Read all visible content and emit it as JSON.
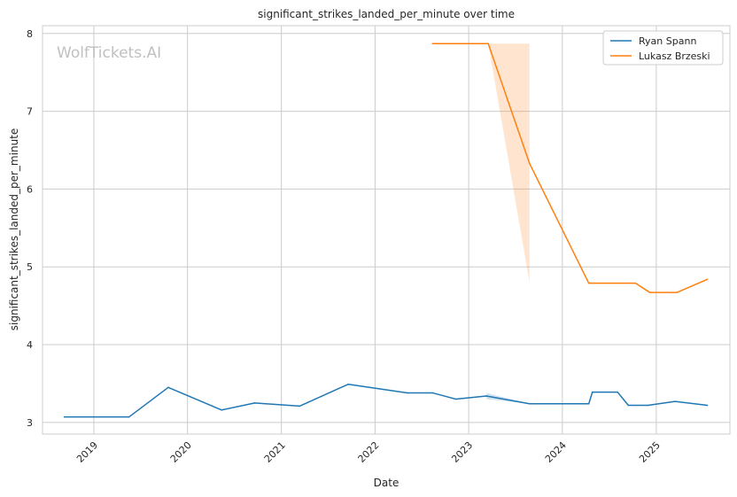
{
  "chart_data": {
    "type": "line",
    "title": "significant_strikes_landed_per_minute over time",
    "xlabel": "Date",
    "ylabel": "significant_strikes_landed_per_minute",
    "watermark": "WolfTickets.AI",
    "xlim": [
      "2018-06-15",
      "2025-10-15"
    ],
    "ylim": [
      2.85,
      8.1
    ],
    "x_ticks": [
      "2019",
      "2020",
      "2021",
      "2022",
      "2023",
      "2024",
      "2025"
    ],
    "y_ticks": [
      3,
      4,
      5,
      6,
      7,
      8
    ],
    "grid": true,
    "legend_position": "top-right",
    "series": [
      {
        "name": "Ryan Spann",
        "color": "#1f77b4",
        "points": [
          {
            "x": "2018-09-08",
            "y": 3.07
          },
          {
            "x": "2019-05-18",
            "y": 3.07
          },
          {
            "x": "2019-10-18",
            "y": 3.45
          },
          {
            "x": "2020-05-13",
            "y": 3.16
          },
          {
            "x": "2020-09-19",
            "y": 3.25
          },
          {
            "x": "2021-03-13",
            "y": 3.21
          },
          {
            "x": "2021-09-18",
            "y": 3.49
          },
          {
            "x": "2022-05-07",
            "y": 3.38
          },
          {
            "x": "2022-08-13",
            "y": 3.38
          },
          {
            "x": "2022-11-12",
            "y": 3.3
          },
          {
            "x": "2023-03-11",
            "y": 3.34
          },
          {
            "x": "2023-08-26",
            "y": 3.24
          },
          {
            "x": "2024-04-13",
            "y": 3.24
          },
          {
            "x": "2024-04-27",
            "y": 3.39
          },
          {
            "x": "2024-08-03",
            "y": 3.39
          },
          {
            "x": "2024-09-14",
            "y": 3.22
          },
          {
            "x": "2024-11-30",
            "y": 3.22
          },
          {
            "x": "2025-03-15",
            "y": 3.27
          },
          {
            "x": "2025-07-19",
            "y": 3.22
          }
        ],
        "band": [
          {
            "x": "2023-03-11",
            "lo": 3.3,
            "hi": 3.38
          },
          {
            "x": "2023-08-26",
            "lo": 3.24,
            "hi": 3.24
          }
        ]
      },
      {
        "name": "Lukasz Brzeski",
        "color": "#ff7f0e",
        "points": [
          {
            "x": "2022-08-13",
            "y": 7.87
          },
          {
            "x": "2023-03-18",
            "y": 7.87
          },
          {
            "x": "2023-08-26",
            "y": 6.33
          },
          {
            "x": "2024-04-13",
            "y": 4.79
          },
          {
            "x": "2024-10-12",
            "y": 4.79
          },
          {
            "x": "2024-12-07",
            "y": 4.67
          },
          {
            "x": "2025-03-22",
            "y": 4.67
          },
          {
            "x": "2025-07-19",
            "y": 4.84
          }
        ],
        "band": [
          {
            "x": "2023-03-18",
            "lo": 7.87,
            "hi": 7.87
          },
          {
            "x": "2023-08-26",
            "lo": 4.8,
            "hi": 7.87
          }
        ]
      }
    ]
  }
}
